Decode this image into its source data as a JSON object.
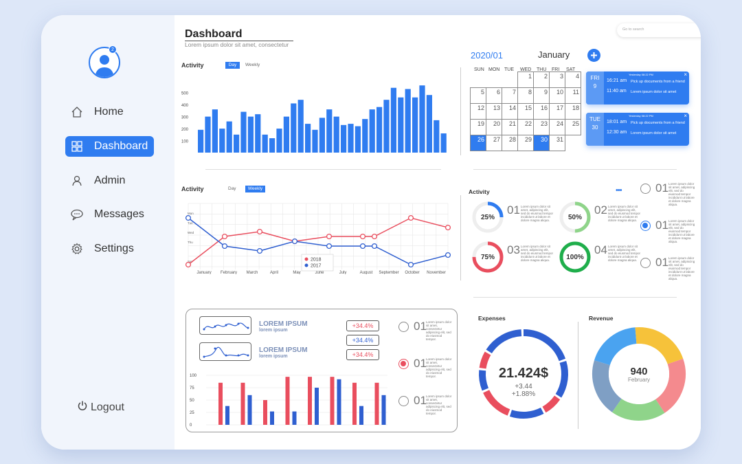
{
  "colors": {
    "accent": "#2f7cf0",
    "red": "#e94e5e",
    "green": "#1fae4b",
    "light_green": "#8fd48a",
    "yellow": "#f6c23a",
    "pink": "#f48a8e",
    "gray_blue": "#7f9fc4",
    "light_blue": "#4aa3f0"
  },
  "sidebar": {
    "avatar_badge": "2",
    "items": [
      {
        "label": "Home",
        "icon": "home-icon"
      },
      {
        "label": "Dashboard",
        "icon": "grid-icon"
      },
      {
        "label": "Admin",
        "icon": "user-icon"
      },
      {
        "label": "Messages",
        "icon": "chat-icon"
      },
      {
        "label": "Settings",
        "icon": "gear-icon"
      }
    ],
    "logout": "Logout"
  },
  "header": {
    "title": "Dashboard",
    "subtitle": "Lorem ipsum dolor sit amet, consectetur",
    "search_placeholder": "Go to search"
  },
  "activity_bar": {
    "title": "Activity",
    "tab_day": "Day",
    "tab_weekly": "Weekly",
    "chart_data": {
      "type": "bar",
      "yticks": [
        "500",
        "400",
        "300",
        "200",
        "100"
      ],
      "ylim": [
        0,
        550
      ],
      "values": [
        190,
        300,
        360,
        200,
        260,
        150,
        340,
        300,
        320,
        150,
        120,
        200,
        300,
        410,
        440,
        240,
        190,
        290,
        360,
        300,
        230,
        240,
        220,
        280,
        360,
        380,
        440,
        540,
        460,
        530,
        460,
        560,
        480,
        270,
        160
      ]
    }
  },
  "activity_line": {
    "title": "Activity",
    "tab_day": "Day",
    "tab_weekly": "Weekly",
    "chart_data": {
      "type": "line",
      "categories": [
        "January",
        "February",
        "March",
        "April",
        "May",
        "June",
        "July",
        "August",
        "September",
        "October",
        "November"
      ],
      "yticks": [
        "Mon",
        "Tue",
        "Wed",
        "Thu",
        "Sat"
      ],
      "series": [
        {
          "name": "2018",
          "color": "#e94e5e",
          "values": [
            0.5,
            4,
            4.6,
            3,
            4,
            4,
            4,
            5.5,
            0.5,
            5,
            4.5
          ]
        },
        {
          "name": "2017",
          "color": "#2f5fd0",
          "values": [
            5,
            2.6,
            2.4,
            3,
            2.6,
            2.6,
            2.6,
            2.6,
            0.5,
            1.2,
            1.6
          ]
        }
      ]
    }
  },
  "calendar": {
    "year_label": "2020/01",
    "month": "January",
    "days_of_week": [
      "SUN",
      "MON",
      "TUE",
      "WED",
      "THU",
      "FRI",
      "SAT"
    ],
    "weeks": [
      [
        "",
        "",
        "",
        "1",
        "2",
        "3",
        "4"
      ],
      [
        "5",
        "6",
        "7",
        "8",
        "9",
        "10",
        "11"
      ],
      [
        "12",
        "13",
        "14",
        "15",
        "16",
        "17",
        "18"
      ],
      [
        "19",
        "20",
        "21",
        "22",
        "23",
        "24",
        "25"
      ],
      [
        "26",
        "27",
        "28",
        "29",
        "30",
        "31",
        ""
      ]
    ],
    "selected": [
      "26",
      "30"
    ]
  },
  "events": [
    {
      "day": "FRI",
      "date": "9",
      "header": "Yesterday 08:22 PM",
      "items": [
        {
          "time": "16:21 am",
          "text": "Pick up documents from a friend"
        },
        {
          "time": "11:40 am",
          "text": "Lorem ipsum dolor sit amet"
        }
      ]
    },
    {
      "day": "TUE",
      "date": "30",
      "header": "Yesterday 08:22 PM",
      "items": [
        {
          "time": "18:01 am",
          "text": "Pick up documents from a friend"
        },
        {
          "time": "12:30 am",
          "text": "Lorem ipsum dolor sit amet"
        }
      ]
    }
  ],
  "activity_stats": {
    "title": "Activity",
    "more": "•••",
    "rings": [
      {
        "pct": 25,
        "label": "25%",
        "num": "01",
        "color": "#2f7cf0"
      },
      {
        "pct": 50,
        "label": "50%",
        "num": "02",
        "color": "#8fd48a"
      },
      {
        "pct": 75,
        "label": "75%",
        "num": "03",
        "color": "#e94e5e"
      },
      {
        "pct": 100,
        "label": "100%",
        "num": "04",
        "color": "#1fae4b"
      }
    ],
    "lorem": "Lorem ipsum dolor sit amet, adipiscing elit, sed do eiusmod tempor incididunt ut labore et dolore magna aliqua.",
    "options": [
      {
        "num": "01",
        "state": "off"
      },
      {
        "num": "01",
        "state": "on"
      },
      {
        "num": "01",
        "state": "off"
      }
    ]
  },
  "lorem_panel": {
    "items": [
      {
        "title": "LOREM IPSUM",
        "sub": "lorem ipsum"
      },
      {
        "title": "LOREM IPSUM",
        "sub": "lorem ipsum"
      }
    ],
    "chips": [
      "+34.4%",
      "+34.4%",
      "+34.4%"
    ],
    "options": [
      {
        "num": "01",
        "state": "off"
      },
      {
        "num": "01",
        "state": "on"
      },
      {
        "num": "01",
        "state": "off"
      }
    ],
    "lorem": "Lorem ipsum dolor sit amet, consectetur adipiscing elit, sed do eiusmod tempor.",
    "chart_data": {
      "type": "bar",
      "yticks": [
        "100",
        "75",
        "50",
        "25",
        "0"
      ],
      "ylim": [
        0,
        100
      ],
      "series": [
        {
          "name": "",
          "color": "#e94e5e",
          "values": [
            85,
            85,
            50,
            97,
            97,
            97,
            85,
            85
          ]
        },
        {
          "name": "",
          "color": "#2f5fd0",
          "values": [
            38,
            60,
            27,
            27,
            75,
            92,
            38,
            60
          ]
        }
      ]
    }
  },
  "expenses": {
    "title": "Expenses",
    "value": "21.424$",
    "delta1": "+3.44",
    "delta2": "+1.88%"
  },
  "revenue": {
    "title": "Revenue",
    "value": "940",
    "sub": "February",
    "chart_data": {
      "type": "pie",
      "segments": [
        {
          "value": 20,
          "color": "#7f9fc4"
        },
        {
          "value": 19,
          "color": "#4aa3f0"
        },
        {
          "value": 21,
          "color": "#f6c23a"
        },
        {
          "value": 21,
          "color": "#f48a8e"
        },
        {
          "value": 19,
          "color": "#8fd48a"
        }
      ]
    }
  }
}
